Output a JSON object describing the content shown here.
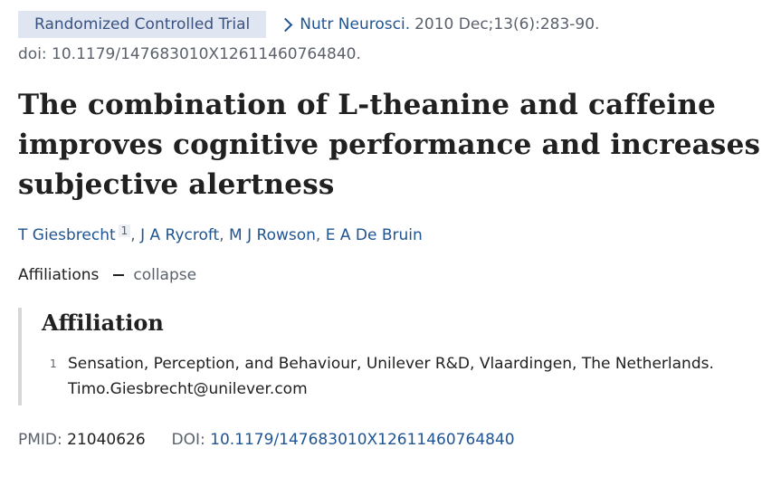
{
  "publication_type": "Randomized Controlled Trial",
  "journal": {
    "name": "Nutr Neurosci.",
    "citation": "2010 Dec;13(6):283-90."
  },
  "doi_line": "doi: 10.1179/147683010X12611460764840.",
  "title": "The combination of L-theanine and caffeine improves cognitive performance and increases subjective alertness",
  "authors": [
    {
      "name": "T Giesbrecht",
      "affiliation": "1"
    },
    {
      "name": "J A Rycroft"
    },
    {
      "name": "M J Rowson"
    },
    {
      "name": "E A De Bruin"
    }
  ],
  "affiliations_toggle": {
    "label": "Affiliations",
    "action": "collapse"
  },
  "affiliation_section": {
    "heading": "Affiliation",
    "items": [
      {
        "number": "1",
        "text": "Sensation, Perception, and Behaviour, Unilever R&D, Vlaardingen, The Netherlands. Timo.Giesbrecht@unilever.com"
      }
    ]
  },
  "identifiers": {
    "pmid_label": "PMID:",
    "pmid": "21040626",
    "doi_label": "DOI:",
    "doi": "10.1179/147683010X12611460764840"
  },
  "colors": {
    "link": "#205493",
    "badge_bg": "#dfe6f2",
    "badge_text": "#3a5280",
    "muted": "#5b616b"
  },
  "icons": {
    "journal_chevron": "chevron-right-icon",
    "toggle": "minus-icon"
  }
}
